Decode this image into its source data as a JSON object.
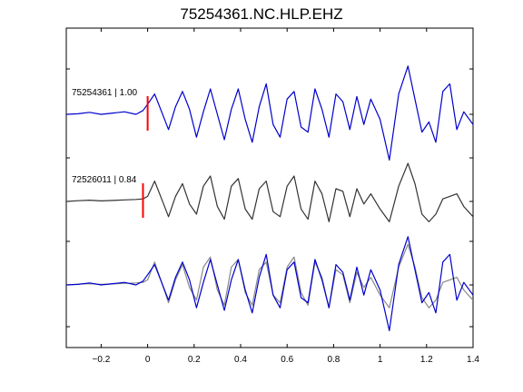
{
  "chart_data": {
    "type": "line",
    "title": "75254361.NC.HLP.EHZ",
    "xlabel": "",
    "ylabel": "",
    "xlim": [
      -0.35,
      1.4
    ],
    "xticks": [
      -0.2,
      0,
      0.2,
      0.4,
      0.6,
      0.8,
      1,
      1.2,
      1.4
    ],
    "xtick_labels": [
      "−0.2",
      "0",
      "0.2",
      "0.4",
      "0.6",
      "0.8",
      "1",
      "1.2",
      "1.4"
    ],
    "grid": false,
    "colors": {
      "trace_primary": "#0000cc",
      "trace_secondary": "#333333",
      "trace_overlay": "#888888",
      "pick": "#ff0000"
    },
    "traces": [
      {
        "label": "75254361 | 1.00",
        "pick_time": 0.0,
        "color": "#0000cc",
        "t": [
          -0.35,
          -0.3,
          -0.25,
          -0.2,
          -0.15,
          -0.1,
          -0.05,
          -0.02,
          0,
          0.03,
          0.06,
          0.09,
          0.12,
          0.15,
          0.18,
          0.21,
          0.24,
          0.27,
          0.3,
          0.33,
          0.36,
          0.39,
          0.42,
          0.45,
          0.48,
          0.51,
          0.54,
          0.57,
          0.6,
          0.63,
          0.66,
          0.69,
          0.72,
          0.75,
          0.78,
          0.81,
          0.84,
          0.87,
          0.9,
          0.93,
          0.96,
          1.0,
          1.04,
          1.08,
          1.12,
          1.15,
          1.18,
          1.21,
          1.24,
          1.27,
          1.3,
          1.33,
          1.36,
          1.4
        ],
        "v": [
          0,
          0.02,
          0.08,
          0,
          0.05,
          0.1,
          0,
          0.15,
          0.4,
          0.8,
          0.1,
          -0.6,
          0.3,
          0.9,
          0.2,
          -0.9,
          0.1,
          1.0,
          0,
          -1.0,
          0.2,
          1.0,
          -0.2,
          -1.1,
          0.3,
          1.2,
          -0.4,
          -0.9,
          0.6,
          0.9,
          -0.5,
          -0.7,
          1.0,
          0.2,
          -0.9,
          0.8,
          0.5,
          -0.6,
          0.7,
          -0.4,
          0.6,
          -0.2,
          -1.8,
          0.8,
          1.9,
          0.6,
          -0.7,
          -0.3,
          -1.1,
          0.9,
          1.2,
          -0.6,
          0.1,
          -0.4
        ]
      },
      {
        "label": "72526011 | 0.84",
        "pick_time": -0.02,
        "color": "#333333",
        "t": [
          -0.35,
          -0.3,
          -0.25,
          -0.2,
          -0.15,
          -0.1,
          -0.05,
          -0.02,
          0,
          0.03,
          0.06,
          0.09,
          0.12,
          0.15,
          0.18,
          0.21,
          0.24,
          0.27,
          0.3,
          0.33,
          0.36,
          0.39,
          0.42,
          0.45,
          0.48,
          0.51,
          0.54,
          0.57,
          0.6,
          0.63,
          0.66,
          0.69,
          0.72,
          0.75,
          0.78,
          0.81,
          0.84,
          0.87,
          0.9,
          0.93,
          0.96,
          1.0,
          1.04,
          1.08,
          1.12,
          1.15,
          1.18,
          1.21,
          1.24,
          1.27,
          1.3,
          1.33,
          1.36,
          1.4
        ],
        "v": [
          0,
          0.03,
          0.05,
          0.02,
          0.04,
          0.06,
          0.08,
          0.1,
          0.2,
          0.8,
          0.1,
          -0.6,
          0.2,
          0.7,
          -0.1,
          -0.5,
          0.6,
          1.0,
          -0.2,
          -0.7,
          0.6,
          0.9,
          -0.3,
          -0.7,
          0.5,
          0.8,
          -0.4,
          -0.6,
          0.6,
          1.0,
          -0.3,
          -0.7,
          0.8,
          0.3,
          -0.8,
          0.5,
          0.4,
          -0.6,
          0.5,
          -0.1,
          0.3,
          -0.3,
          -0.8,
          0.6,
          1.5,
          0.7,
          -0.5,
          -0.8,
          -0.5,
          0.1,
          0.2,
          0.3,
          -0.2,
          -0.6
        ]
      },
      {
        "label": "",
        "overlay": true,
        "series_colors": [
          "#888888",
          "#0000cc"
        ],
        "t": [
          -0.35,
          -0.3,
          -0.25,
          -0.2,
          -0.15,
          -0.1,
          -0.05,
          -0.02,
          0,
          0.03,
          0.06,
          0.09,
          0.12,
          0.15,
          0.18,
          0.21,
          0.24,
          0.27,
          0.3,
          0.33,
          0.36,
          0.39,
          0.42,
          0.45,
          0.48,
          0.51,
          0.54,
          0.57,
          0.6,
          0.63,
          0.66,
          0.69,
          0.72,
          0.75,
          0.78,
          0.81,
          0.84,
          0.87,
          0.9,
          0.93,
          0.96,
          1.0,
          1.04,
          1.08,
          1.12,
          1.15,
          1.18,
          1.21,
          1.24,
          1.27,
          1.3,
          1.33,
          1.36,
          1.4
        ],
        "v_a": [
          0,
          0.03,
          0.05,
          0.02,
          0.04,
          0.06,
          0.08,
          0.1,
          0.2,
          0.9,
          0.1,
          -0.7,
          0.2,
          0.8,
          -0.1,
          -0.6,
          0.7,
          1.1,
          -0.2,
          -0.8,
          0.7,
          1.0,
          -0.3,
          -0.8,
          0.6,
          0.9,
          -0.4,
          -0.7,
          0.7,
          1.1,
          -0.3,
          -0.8,
          0.9,
          0.3,
          -0.9,
          0.6,
          0.4,
          -0.7,
          0.5,
          -0.1,
          0.3,
          -0.4,
          -0.9,
          0.7,
          1.6,
          0.7,
          -0.5,
          -0.9,
          -0.6,
          0.1,
          0.2,
          0.3,
          -0.2,
          -0.6
        ],
        "v_b": [
          0,
          0.02,
          0.08,
          0,
          0.05,
          0.1,
          0,
          0.15,
          0.4,
          0.8,
          0.1,
          -0.6,
          0.3,
          0.9,
          0.2,
          -0.9,
          0.1,
          1.0,
          0,
          -1.0,
          0.2,
          1.0,
          -0.2,
          -1.1,
          0.3,
          1.2,
          -0.4,
          -0.9,
          0.6,
          0.9,
          -0.5,
          -0.7,
          1.0,
          0.2,
          -0.9,
          0.8,
          0.5,
          -0.6,
          0.7,
          -0.4,
          0.6,
          -0.2,
          -1.8,
          0.8,
          1.9,
          0.6,
          -0.7,
          -0.3,
          -1.1,
          0.9,
          1.2,
          -0.6,
          0.1,
          -0.4
        ]
      }
    ]
  }
}
